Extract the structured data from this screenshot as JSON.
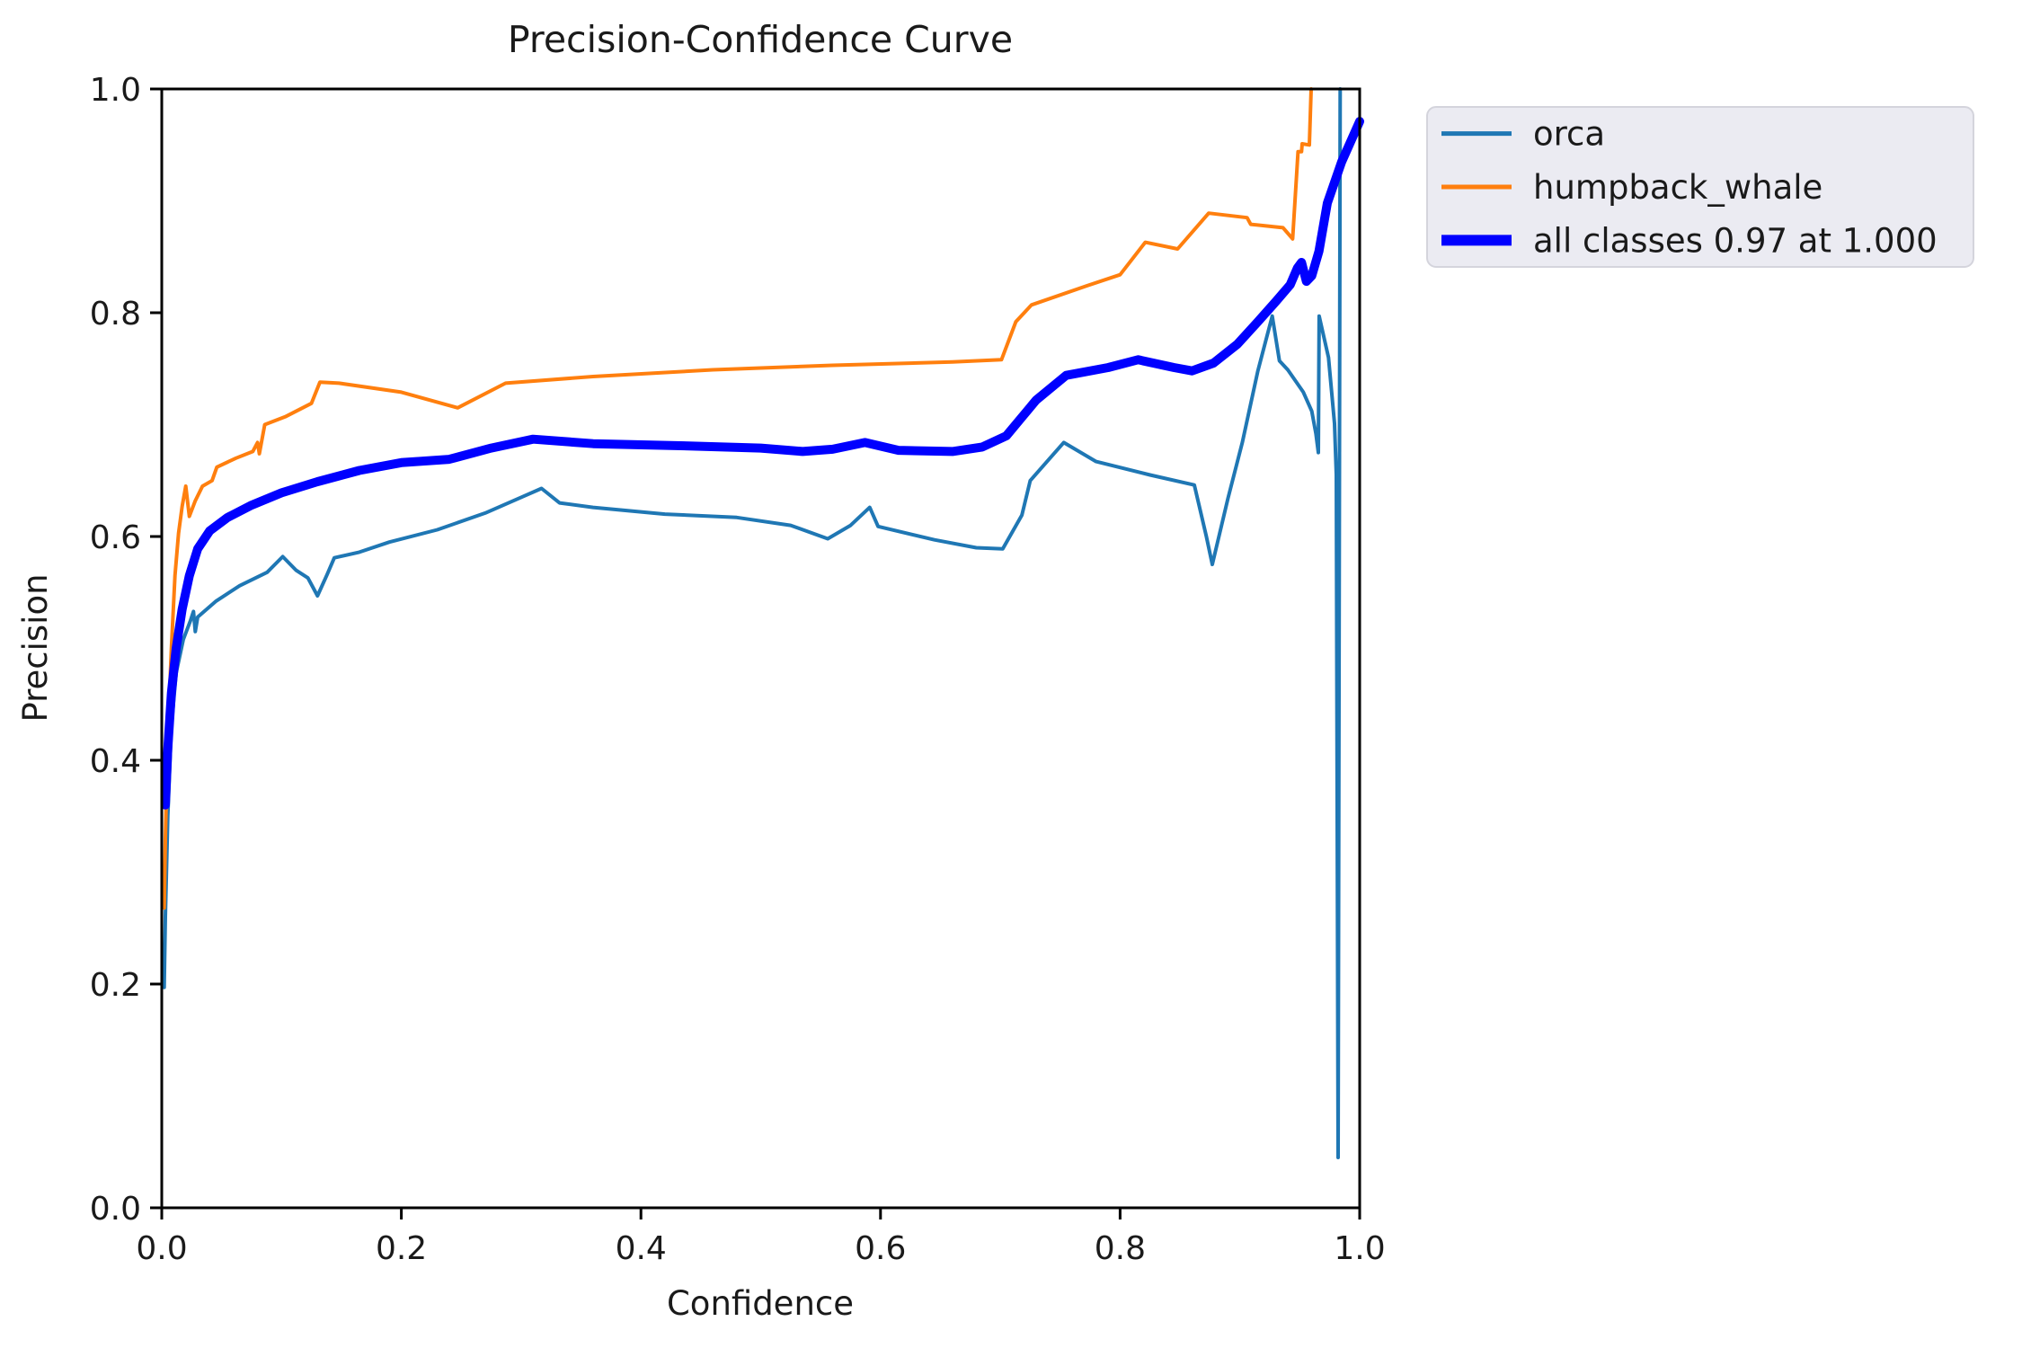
{
  "figure": {
    "title": "Precision-Confidence Curve",
    "xlabel": "Confidence",
    "ylabel": "Precision"
  },
  "legend": {
    "items": [
      {
        "label": "orca",
        "color": "#1f77b4",
        "thick": false
      },
      {
        "label": "humpback_whale",
        "color": "#ff7f0e",
        "thick": false
      },
      {
        "label": "all classes 0.97 at 1.000",
        "color": "#0000ff",
        "thick": true
      }
    ],
    "background": "#ebebf2",
    "border_color": "#d4d4dc"
  },
  "chart_data": {
    "type": "line",
    "title": "Precision-Confidence Curve",
    "xlabel": "Confidence",
    "ylabel": "Precision",
    "xlim": [
      0.0,
      1.0
    ],
    "ylim": [
      0.0,
      1.0
    ],
    "x_ticks": [
      0.0,
      0.2,
      0.4,
      0.6,
      0.8,
      1.0
    ],
    "y_ticks": [
      0.0,
      0.2,
      0.4,
      0.6,
      0.8,
      1.0
    ],
    "grid": false,
    "legend_position": "outside-upper-right",
    "spine_color": "#000000",
    "series": [
      {
        "name": "orca",
        "color": "#1f77b4",
        "width": 4,
        "points": [
          [
            0.002,
            0.197
          ],
          [
            0.003,
            0.26
          ],
          [
            0.005,
            0.35
          ],
          [
            0.008,
            0.43
          ],
          [
            0.012,
            0.478
          ],
          [
            0.018,
            0.508
          ],
          [
            0.024,
            0.525
          ],
          [
            0.0265,
            0.533
          ],
          [
            0.028,
            0.515
          ],
          [
            0.03,
            0.528
          ],
          [
            0.045,
            0.542
          ],
          [
            0.065,
            0.556
          ],
          [
            0.088,
            0.568
          ],
          [
            0.101,
            0.582
          ],
          [
            0.112,
            0.57
          ],
          [
            0.122,
            0.563
          ],
          [
            0.13,
            0.547
          ],
          [
            0.138,
            0.566
          ],
          [
            0.144,
            0.581
          ],
          [
            0.165,
            0.586
          ],
          [
            0.19,
            0.595
          ],
          [
            0.23,
            0.606
          ],
          [
            0.27,
            0.621
          ],
          [
            0.3,
            0.635
          ],
          [
            0.317,
            0.643
          ],
          [
            0.332,
            0.63
          ],
          [
            0.36,
            0.626
          ],
          [
            0.42,
            0.62
          ],
          [
            0.48,
            0.617
          ],
          [
            0.525,
            0.61
          ],
          [
            0.556,
            0.598
          ],
          [
            0.575,
            0.61
          ],
          [
            0.591,
            0.626
          ],
          [
            0.598,
            0.609
          ],
          [
            0.645,
            0.597
          ],
          [
            0.68,
            0.59
          ],
          [
            0.702,
            0.589
          ],
          [
            0.718,
            0.619
          ],
          [
            0.725,
            0.65
          ],
          [
            0.753,
            0.684
          ],
          [
            0.78,
            0.667
          ],
          [
            0.825,
            0.655
          ],
          [
            0.862,
            0.646
          ],
          [
            0.872,
            0.6
          ],
          [
            0.877,
            0.575
          ],
          [
            0.89,
            0.634
          ],
          [
            0.902,
            0.684
          ],
          [
            0.915,
            0.748
          ],
          [
            0.927,
            0.797
          ],
          [
            0.933,
            0.757
          ],
          [
            0.94,
            0.749
          ],
          [
            0.953,
            0.729
          ],
          [
            0.96,
            0.712
          ],
          [
            0.9635,
            0.692
          ],
          [
            0.9655,
            0.675
          ],
          [
            0.9662,
            0.797
          ],
          [
            0.974,
            0.76
          ],
          [
            0.979,
            0.701
          ],
          [
            0.9805,
            0.655
          ],
          [
            0.982,
            0.045
          ],
          [
            0.9837,
            1.0
          ]
        ]
      },
      {
        "name": "humpback_whale",
        "color": "#ff7f0e",
        "width": 4,
        "points": [
          [
            0.002,
            0.268
          ],
          [
            0.003,
            0.33
          ],
          [
            0.005,
            0.42
          ],
          [
            0.008,
            0.5
          ],
          [
            0.011,
            0.565
          ],
          [
            0.014,
            0.603
          ],
          [
            0.017,
            0.627
          ],
          [
            0.02,
            0.645
          ],
          [
            0.023,
            0.618
          ],
          [
            0.028,
            0.632
          ],
          [
            0.034,
            0.645
          ],
          [
            0.042,
            0.65
          ],
          [
            0.046,
            0.662
          ],
          [
            0.062,
            0.67
          ],
          [
            0.076,
            0.676
          ],
          [
            0.08,
            0.684
          ],
          [
            0.0815,
            0.674
          ],
          [
            0.086,
            0.7
          ],
          [
            0.103,
            0.707
          ],
          [
            0.125,
            0.719
          ],
          [
            0.132,
            0.738
          ],
          [
            0.148,
            0.737
          ],
          [
            0.2,
            0.729
          ],
          [
            0.247,
            0.715
          ],
          [
            0.287,
            0.737
          ],
          [
            0.36,
            0.743
          ],
          [
            0.46,
            0.749
          ],
          [
            0.56,
            0.753
          ],
          [
            0.66,
            0.756
          ],
          [
            0.701,
            0.758
          ],
          [
            0.713,
            0.792
          ],
          [
            0.726,
            0.807
          ],
          [
            0.772,
            0.824
          ],
          [
            0.8,
            0.834
          ],
          [
            0.821,
            0.863
          ],
          [
            0.848,
            0.857
          ],
          [
            0.874,
            0.889
          ],
          [
            0.906,
            0.885
          ],
          [
            0.909,
            0.879
          ],
          [
            0.936,
            0.876
          ],
          [
            0.944,
            0.866
          ],
          [
            0.9485,
            0.944
          ],
          [
            0.9515,
            0.944
          ],
          [
            0.952,
            0.951
          ],
          [
            0.958,
            0.95
          ],
          [
            0.9595,
            1.0
          ]
        ]
      },
      {
        "name": "all classes",
        "annotation": "0.97 at 1.000",
        "color": "#0000ff",
        "width": 10,
        "points": [
          [
            0.003,
            0.36
          ],
          [
            0.005,
            0.41
          ],
          [
            0.008,
            0.46
          ],
          [
            0.012,
            0.5
          ],
          [
            0.017,
            0.535
          ],
          [
            0.023,
            0.565
          ],
          [
            0.03,
            0.589
          ],
          [
            0.04,
            0.605
          ],
          [
            0.055,
            0.617
          ],
          [
            0.075,
            0.628
          ],
          [
            0.1,
            0.639
          ],
          [
            0.13,
            0.649
          ],
          [
            0.165,
            0.659
          ],
          [
            0.2,
            0.666
          ],
          [
            0.24,
            0.669
          ],
          [
            0.275,
            0.679
          ],
          [
            0.31,
            0.687
          ],
          [
            0.36,
            0.683
          ],
          [
            0.44,
            0.681
          ],
          [
            0.5,
            0.679
          ],
          [
            0.535,
            0.676
          ],
          [
            0.56,
            0.678
          ],
          [
            0.587,
            0.684
          ],
          [
            0.615,
            0.677
          ],
          [
            0.66,
            0.676
          ],
          [
            0.685,
            0.68
          ],
          [
            0.705,
            0.69
          ],
          [
            0.73,
            0.722
          ],
          [
            0.755,
            0.744
          ],
          [
            0.79,
            0.751
          ],
          [
            0.815,
            0.758
          ],
          [
            0.845,
            0.751
          ],
          [
            0.86,
            0.748
          ],
          [
            0.878,
            0.755
          ],
          [
            0.898,
            0.772
          ],
          [
            0.915,
            0.792
          ],
          [
            0.93,
            0.81
          ],
          [
            0.942,
            0.825
          ],
          [
            0.948,
            0.84
          ],
          [
            0.9515,
            0.845
          ],
          [
            0.9555,
            0.828
          ],
          [
            0.96,
            0.833
          ],
          [
            0.966,
            0.855
          ],
          [
            0.973,
            0.898
          ],
          [
            0.985,
            0.935
          ],
          [
            1.0,
            0.971
          ]
        ]
      }
    ]
  }
}
